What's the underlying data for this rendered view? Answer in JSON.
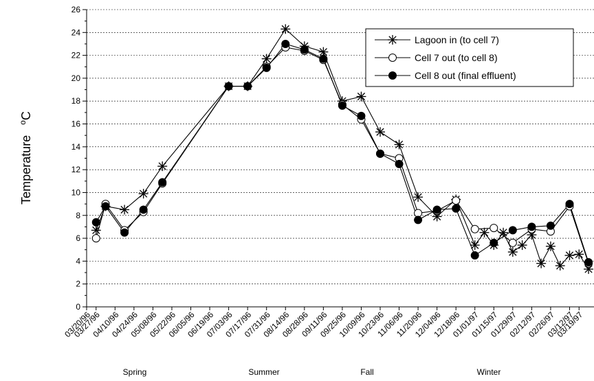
{
  "chart_data": {
    "type": "line",
    "title": "",
    "xlabel": "",
    "ylabel": "Temperature",
    "ylabel_unit": "oC",
    "ylim": [
      0,
      26
    ],
    "y_ticks": [
      0,
      2,
      4,
      6,
      8,
      10,
      12,
      14,
      16,
      18,
      20,
      22,
      24,
      26
    ],
    "grid": "horizontal dashed",
    "legend_position": "top-right",
    "x_tick_labels": [
      "03/20/96",
      "03/27/96",
      "04/10/96",
      "04/24/96",
      "05/08/96",
      "05/22/96",
      "06/05/96",
      "06/19/96",
      "07/03/96",
      "07/17/96",
      "07/31/96",
      "08/14/96",
      "08/28/96",
      "09/11/96",
      "09/25/96",
      "10/09/96",
      "10/23/96",
      "11/06/96",
      "11/20/96",
      "12/04/96",
      "12/18/96",
      "01/01/97",
      "01/15/97",
      "01/29/97",
      "02/12/97",
      "02/26/97",
      "03/12/97",
      "03/19/97"
    ],
    "seasons": [
      "Spring",
      "Summer",
      "Fall",
      "Winter"
    ],
    "series": [
      {
        "name": "Lagoon in (to cell 7)",
        "color": "#000000",
        "marker": "asterisk",
        "points": [
          [
            "1996-03-27",
            6.7
          ],
          [
            "1996-04-03",
            8.8
          ],
          [
            "1996-04-17",
            8.5
          ],
          [
            "1996-05-01",
            9.9
          ],
          [
            "1996-05-15",
            12.3
          ],
          [
            "1996-07-03",
            19.3
          ],
          [
            "1996-07-17",
            19.3
          ],
          [
            "1996-07-31",
            21.7
          ],
          [
            "1996-08-14",
            24.3
          ],
          [
            "1996-08-28",
            22.8
          ],
          [
            "1996-09-11",
            22.3
          ],
          [
            "1996-09-25",
            18.0
          ],
          [
            "1996-10-09",
            18.4
          ],
          [
            "1996-10-23",
            15.3
          ],
          [
            "1996-11-06",
            14.2
          ],
          [
            "1996-11-20",
            9.6
          ],
          [
            "1996-12-04",
            7.9
          ],
          [
            "1996-12-18",
            9.4
          ],
          [
            "1997-01-01",
            5.4
          ],
          [
            "1997-01-08",
            6.5
          ],
          [
            "1997-01-15",
            5.4
          ],
          [
            "1997-01-22",
            6.5
          ],
          [
            "1997-01-29",
            4.8
          ],
          [
            "1997-02-05",
            5.4
          ],
          [
            "1997-02-12",
            6.3
          ],
          [
            "1997-02-19",
            3.8
          ],
          [
            "1997-02-26",
            5.3
          ],
          [
            "1997-03-05",
            3.6
          ],
          [
            "1997-03-12",
            4.5
          ],
          [
            "1997-03-19",
            4.6
          ],
          [
            "1997-03-26",
            3.3
          ]
        ]
      },
      {
        "name": "Cell 7 out (to cell 8)",
        "color": "#000000",
        "marker": "open-circle",
        "points": [
          [
            "1996-03-27",
            6.0
          ],
          [
            "1996-04-03",
            9.0
          ],
          [
            "1996-04-17",
            6.7
          ],
          [
            "1996-05-01",
            8.3
          ],
          [
            "1996-05-15",
            10.8
          ],
          [
            "1996-07-03",
            19.3
          ],
          [
            "1996-07-17",
            19.3
          ],
          [
            "1996-07-31",
            21.0
          ],
          [
            "1996-08-14",
            22.7
          ],
          [
            "1996-08-28",
            22.4
          ],
          [
            "1996-09-11",
            21.6
          ],
          [
            "1996-09-25",
            17.7
          ],
          [
            "1996-10-09",
            16.4
          ],
          [
            "1996-10-23",
            13.4
          ],
          [
            "1996-11-06",
            13.0
          ],
          [
            "1996-11-20",
            8.2
          ],
          [
            "1996-12-04",
            8.4
          ],
          [
            "1996-12-18",
            9.3
          ],
          [
            "1997-01-01",
            6.8
          ],
          [
            "1997-01-15",
            6.9
          ],
          [
            "1997-01-29",
            5.6
          ],
          [
            "1997-02-12",
            6.8
          ],
          [
            "1997-02-26",
            6.6
          ],
          [
            "1997-03-12",
            8.8
          ],
          [
            "1997-03-26",
            3.8
          ]
        ]
      },
      {
        "name": "Cell 8 out (final effluent)",
        "color": "#000000",
        "marker": "filled-circle",
        "points": [
          [
            "1996-03-27",
            7.4
          ],
          [
            "1996-04-03",
            8.8
          ],
          [
            "1996-04-17",
            6.5
          ],
          [
            "1996-05-01",
            8.5
          ],
          [
            "1996-05-15",
            10.9
          ],
          [
            "1996-07-03",
            19.3
          ],
          [
            "1996-07-17",
            19.3
          ],
          [
            "1996-07-31",
            20.9
          ],
          [
            "1996-08-14",
            23.0
          ],
          [
            "1996-08-28",
            22.5
          ],
          [
            "1996-09-11",
            21.7
          ],
          [
            "1996-09-25",
            17.6
          ],
          [
            "1996-10-09",
            16.7
          ],
          [
            "1996-10-23",
            13.4
          ],
          [
            "1996-11-06",
            12.5
          ],
          [
            "1996-11-20",
            7.6
          ],
          [
            "1996-12-04",
            8.5
          ],
          [
            "1996-12-18",
            8.6
          ],
          [
            "1997-01-01",
            4.5
          ],
          [
            "1997-01-15",
            5.6
          ],
          [
            "1997-01-29",
            6.7
          ],
          [
            "1997-02-12",
            7.0
          ],
          [
            "1997-02-26",
            7.1
          ],
          [
            "1997-03-12",
            9.0
          ],
          [
            "1997-03-26",
            3.9
          ]
        ]
      }
    ]
  }
}
